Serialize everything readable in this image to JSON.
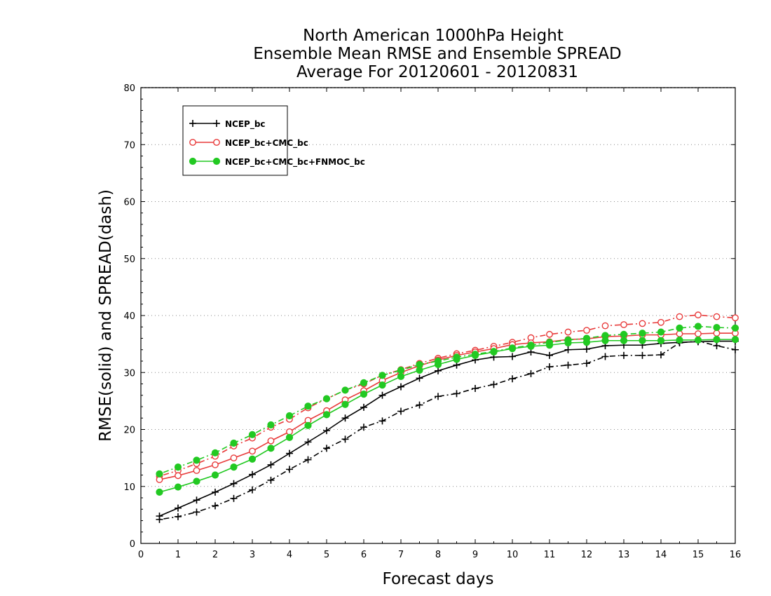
{
  "chart_data": {
    "type": "line",
    "title": [
      "North American 1000hPa Height",
      "Ensemble Mean RMSE and Ensemble SPREAD",
      "Average For 20120601 - 20120831"
    ],
    "xlabel": "Forecast days",
    "ylabel": "RMSE(solid) and SPREAD(dash)",
    "xlim": [
      0,
      16
    ],
    "ylim": [
      0,
      80
    ],
    "xticks": [
      0,
      1,
      2,
      3,
      4,
      5,
      6,
      7,
      8,
      9,
      10,
      11,
      12,
      13,
      14,
      15,
      16
    ],
    "yticks": [
      0,
      10,
      20,
      30,
      40,
      50,
      60,
      70,
      80
    ],
    "grid": "horizontal dotted",
    "legend_position": "top-left",
    "x": [
      0.5,
      1,
      1.5,
      2,
      2.5,
      3,
      3.5,
      4,
      4.5,
      5,
      5.5,
      6,
      6.5,
      7,
      7.5,
      8,
      8.5,
      9,
      9.5,
      10,
      10.5,
      11,
      11.5,
      12,
      12.5,
      13,
      13.5,
      14,
      14.5,
      15,
      15.5,
      16
    ],
    "series": [
      {
        "name": "NCEP_bc",
        "color": "#000000",
        "marker": "plus",
        "rmse": [
          4.8,
          6.2,
          7.6,
          9.0,
          10.5,
          12.1,
          13.8,
          15.8,
          17.8,
          19.8,
          22.0,
          23.9,
          26.0,
          27.5,
          29.0,
          30.3,
          31.3,
          32.2,
          32.7,
          32.8,
          33.6,
          33.0,
          34.0,
          34.1,
          34.7,
          34.8,
          34.8,
          35.1,
          35.3,
          35.4,
          35.5,
          35.5
        ],
        "spread": [
          4.2,
          4.7,
          5.5,
          6.6,
          7.9,
          9.4,
          11.1,
          13.0,
          14.7,
          16.7,
          18.3,
          20.4,
          21.5,
          23.2,
          24.3,
          25.8,
          26.3,
          27.2,
          27.9,
          28.9,
          29.8,
          31.0,
          31.3,
          31.6,
          32.8,
          33.0,
          33.0,
          33.1,
          35.2,
          35.5,
          34.7,
          34.0
        ]
      },
      {
        "name": "NCEP_bc+CMC_bc",
        "color": "#e83a3a",
        "marker": "open-circle",
        "rmse": [
          11.2,
          11.9,
          12.8,
          13.8,
          15.0,
          16.2,
          18.0,
          19.6,
          21.6,
          23.3,
          25.2,
          26.8,
          28.6,
          30.0,
          31.2,
          32.2,
          33.0,
          33.6,
          34.2,
          34.9,
          35.2,
          35.4,
          35.8,
          35.9,
          36.3,
          36.4,
          36.6,
          36.6,
          36.8,
          36.8,
          36.9,
          36.9
        ],
        "spread": [
          11.8,
          12.8,
          14.0,
          15.3,
          17.1,
          18.5,
          20.4,
          21.8,
          23.8,
          25.4,
          26.9,
          28.0,
          29.5,
          30.5,
          31.6,
          32.5,
          33.3,
          33.9,
          34.6,
          35.3,
          36.1,
          36.7,
          37.1,
          37.4,
          38.2,
          38.4,
          38.6,
          38.8,
          39.8,
          40.1,
          39.8,
          39.6
        ]
      },
      {
        "name": "NCEP_bc+CMC_bc+FNMOC_bc",
        "color": "#22c922",
        "marker": "filled-circle",
        "rmse": [
          9.0,
          9.9,
          10.9,
          12.0,
          13.4,
          14.8,
          16.7,
          18.6,
          20.7,
          22.6,
          24.4,
          26.2,
          27.8,
          29.3,
          30.4,
          31.4,
          32.3,
          33.0,
          33.6,
          34.2,
          34.6,
          34.8,
          35.2,
          35.3,
          35.6,
          35.6,
          35.6,
          35.6,
          35.7,
          35.7,
          35.8,
          35.8
        ],
        "spread": [
          12.2,
          13.4,
          14.6,
          15.9,
          17.6,
          19.1,
          20.8,
          22.4,
          24.1,
          25.4,
          26.9,
          28.2,
          29.5,
          30.4,
          31.4,
          32.0,
          32.7,
          33.2,
          33.7,
          34.3,
          34.8,
          35.3,
          35.7,
          36.0,
          36.5,
          36.7,
          36.9,
          37.1,
          37.8,
          38.1,
          37.9,
          37.8
        ]
      }
    ]
  }
}
